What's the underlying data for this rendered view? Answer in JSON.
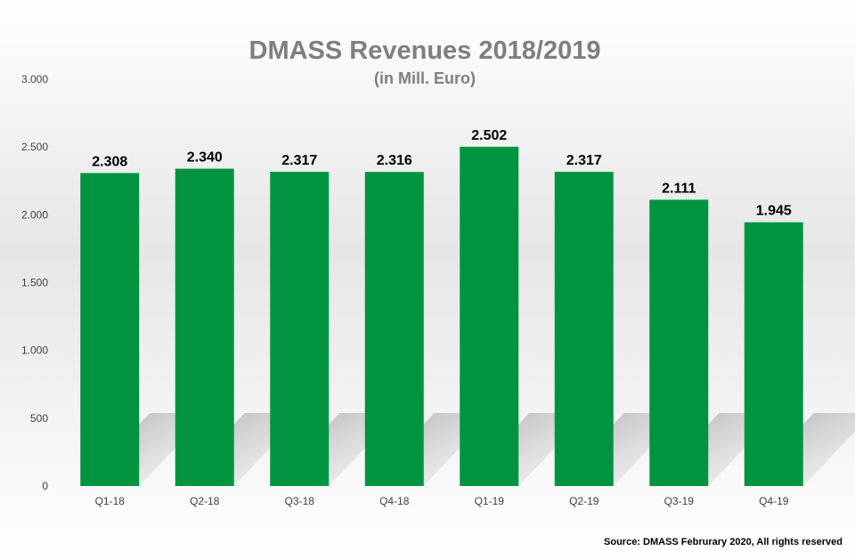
{
  "chart_data": {
    "type": "bar",
    "title": "DMASS Revenues 2018/2019",
    "subtitle": "(in Mill. Euro)",
    "xlabel": "",
    "ylabel": "",
    "categories": [
      "Q1-18",
      "Q2-18",
      "Q3-18",
      "Q4-18",
      "Q1-19",
      "Q2-19",
      "Q3-19",
      "Q4-19"
    ],
    "values": [
      2308,
      2340,
      2317,
      2316,
      2502,
      2317,
      2111,
      1945
    ],
    "value_labels": [
      "2.308",
      "2.340",
      "2.317",
      "2.316",
      "2.502",
      "2.317",
      "2.111",
      "1.945"
    ],
    "ylim": [
      0,
      3000
    ],
    "yticks": [
      0,
      500,
      1000,
      1500,
      2000,
      2500,
      3000
    ],
    "ytick_labels": [
      "0",
      "500",
      "1.000",
      "1.500",
      "2.000",
      "2.500",
      "3.000"
    ],
    "grid": false,
    "legend": "none",
    "bar_color": "#009440",
    "source": "Source: DMASS Februrary 2020, All rights reserved"
  }
}
